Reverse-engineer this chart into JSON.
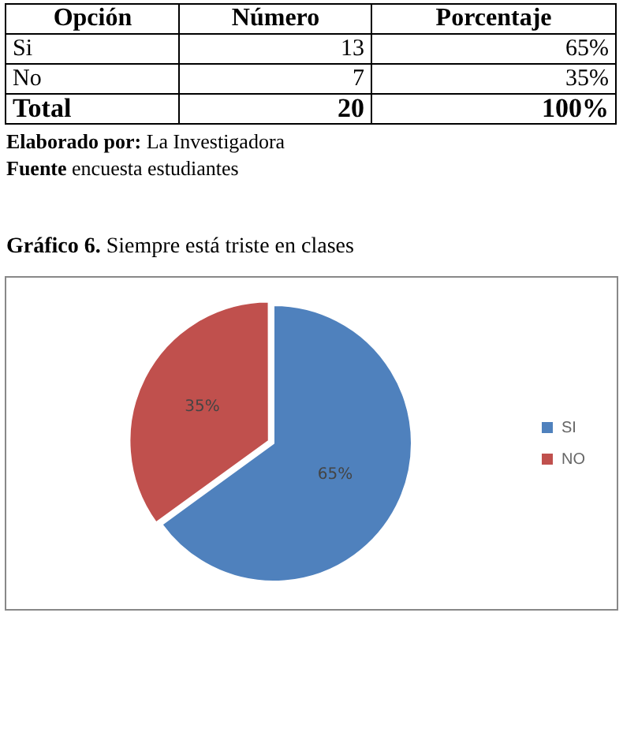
{
  "chart_data": {
    "type": "pie",
    "title": "Gráfico 6.  Siempre está triste en clases",
    "categories": [
      "SI",
      "NO"
    ],
    "values": [
      65,
      35
    ],
    "colors": [
      "#4f81bd",
      "#c0504d"
    ],
    "value_labels": [
      "65%",
      "35%"
    ],
    "legend": "right",
    "annotations": [
      "Opción\tNúmero\tPorcentaje",
      "Si\t13\t65%",
      "No\t7\t35%",
      "Total\t20\t100%",
      "Elaborado por: La Investigadora",
      "Fuente encuesta estudiantes"
    ]
  }
}
